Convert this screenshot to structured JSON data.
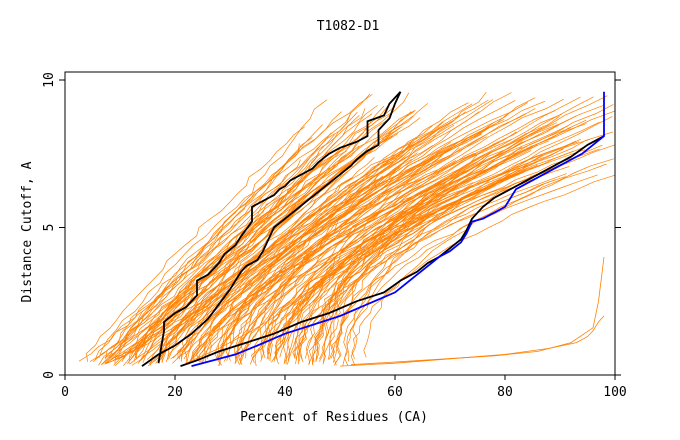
{
  "chart_data": {
    "type": "line",
    "title": "T1082-D1",
    "xlabel": "Percent of Residues (CA)",
    "ylabel": "Distance Cutoff, A",
    "xlim": [
      0,
      100
    ],
    "ylim": [
      0,
      10
    ],
    "x_ticks": [
      "0",
      "20",
      "40",
      "60",
      "80",
      "100"
    ],
    "y_ticks": [
      "0",
      "5",
      "10"
    ],
    "grid": false,
    "legend": "none",
    "colors": {
      "background_series": "#ff8000",
      "highlight_black": "#000000",
      "highlight_blue": "#0000ff",
      "axes": "#000000"
    },
    "background_family": {
      "color": "#ff8000",
      "count": 160,
      "start_x_range": [
        5,
        52
      ],
      "end_x_range": [
        43,
        100
      ],
      "y_range": [
        0.3,
        9.6
      ],
      "outliers": [
        {
          "x": [
            50,
            60,
            70,
            80,
            88,
            93,
            95,
            96,
            97,
            98
          ],
          "y": [
            0.3,
            0.4,
            0.55,
            0.7,
            0.9,
            1.1,
            1.3,
            1.5,
            1.8,
            2.0
          ]
        },
        {
          "x": [
            52,
            65,
            78,
            86,
            92,
            96,
            97,
            98
          ],
          "y": [
            0.35,
            0.5,
            0.65,
            0.8,
            1.1,
            1.6,
            2.5,
            4.0
          ]
        },
        {
          "x": [
            22,
            28,
            34,
            40,
            45,
            50
          ],
          "y": [
            0.4,
            0.9,
            1.5,
            2.2,
            2.9,
            3.6
          ]
        }
      ]
    },
    "series": [
      {
        "color": "#000000",
        "x": [
          17,
          18,
          18,
          20,
          22,
          24,
          24,
          26,
          27,
          28,
          29,
          31,
          32,
          34,
          34,
          36,
          37,
          38,
          39,
          40,
          41,
          43,
          45,
          46,
          48,
          50,
          53,
          55,
          55,
          58,
          59,
          61
        ],
        "y": [
          0.4,
          1.5,
          1.8,
          2.1,
          2.3,
          2.7,
          3.2,
          3.4,
          3.6,
          3.8,
          4.1,
          4.4,
          4.7,
          5.2,
          5.7,
          5.9,
          6.0,
          6.1,
          6.3,
          6.4,
          6.6,
          6.8,
          7.0,
          7.2,
          7.5,
          7.7,
          7.9,
          8.1,
          8.6,
          8.8,
          9.2,
          9.6
        ]
      },
      {
        "color": "#000000",
        "x": [
          14,
          17,
          20,
          23,
          26,
          28,
          30,
          32,
          33,
          35,
          36,
          37,
          38,
          40,
          42,
          44,
          46,
          48,
          50,
          52,
          53,
          55,
          57,
          57,
          59,
          60,
          61
        ],
        "y": [
          0.3,
          0.7,
          1.0,
          1.4,
          1.9,
          2.4,
          2.9,
          3.5,
          3.7,
          3.9,
          4.2,
          4.6,
          5.0,
          5.3,
          5.6,
          5.9,
          6.2,
          6.5,
          6.8,
          7.1,
          7.3,
          7.6,
          7.8,
          8.3,
          8.7,
          9.2,
          9.6
        ]
      },
      {
        "color": "#000000",
        "x": [
          21,
          24,
          28,
          33,
          38,
          43,
          48,
          53,
          58,
          61,
          64,
          66,
          68,
          70,
          72,
          73,
          74,
          76,
          78,
          80,
          83,
          86,
          89,
          92,
          95,
          98
        ],
        "y": [
          0.3,
          0.5,
          0.8,
          1.1,
          1.4,
          1.8,
          2.1,
          2.5,
          2.8,
          3.2,
          3.5,
          3.8,
          4.0,
          4.3,
          4.6,
          4.9,
          5.3,
          5.7,
          6.0,
          6.2,
          6.5,
          6.8,
          7.1,
          7.4,
          7.8,
          8.1
        ]
      },
      {
        "color": "#0000ff",
        "x": [
          23,
          27,
          31,
          35,
          40,
          45,
          50,
          55,
          60,
          62,
          64,
          66,
          68,
          70,
          72,
          73,
          74,
          76,
          78,
          80,
          81,
          82,
          85,
          88,
          91,
          94,
          96,
          98,
          98
        ],
        "y": [
          0.3,
          0.5,
          0.7,
          1.0,
          1.4,
          1.7,
          2.0,
          2.4,
          2.8,
          3.1,
          3.4,
          3.7,
          4.0,
          4.2,
          4.5,
          4.8,
          5.2,
          5.3,
          5.5,
          5.7,
          6.0,
          6.3,
          6.6,
          6.9,
          7.2,
          7.5,
          7.8,
          8.1,
          9.6
        ]
      }
    ]
  }
}
